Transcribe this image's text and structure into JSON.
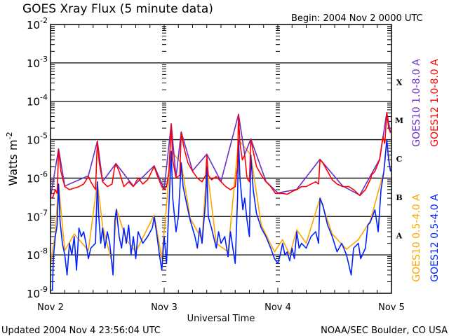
{
  "chart_data": {
    "type": "line",
    "title": "GOES Xray Flux (5 minute data)",
    "begin_label": "Begin:  2004 Nov 2 0000 UTC",
    "xlabel": "Universal Time",
    "ylabel": "Watts m",
    "ylabel_sup": "-2",
    "yscale": "log",
    "ylim": [
      1e-09,
      0.01
    ],
    "xlim_hours": [
      0,
      72
    ],
    "x_tick_labels": [
      {
        "hour": 0,
        "label": "Nov 2"
      },
      {
        "hour": 24,
        "label": "Nov 3"
      },
      {
        "hour": 48,
        "label": "Nov 4"
      },
      {
        "hour": 72,
        "label": "Nov 5"
      }
    ],
    "y_tick_base": "10",
    "y_tick_exponents": [
      "-2",
      "-3",
      "-4",
      "-5",
      "-6",
      "-7",
      "-8",
      "-9"
    ],
    "flare_classes": [
      {
        "label": "X",
        "decade": -4
      },
      {
        "label": "M",
        "decade": -5
      },
      {
        "label": "C",
        "decade": -6
      },
      {
        "label": "B",
        "decade": -7
      },
      {
        "label": "A",
        "decade": -8
      }
    ],
    "grid": "horizontal lines at each decade from 1e-8 to 1e-3; vertical day lines",
    "legend_placement": "right, vertical",
    "series": [
      {
        "name": "GOES10 1.0-8.0 A",
        "color": "#6a2fc8",
        "legend_column": "long",
        "points": [
          [
            0,
            3.1e-07
          ],
          [
            1.7,
            5.8e-06
          ],
          [
            3,
            6.2e-07
          ],
          [
            8,
            1.15e-06
          ],
          [
            9.9,
            9.2e-06
          ],
          [
            11,
            8.2e-07
          ],
          [
            13.8,
            2.4e-06
          ],
          [
            17.5,
            6.2e-07
          ],
          [
            21.9,
            2.1e-06
          ],
          [
            24,
            5.2e-07
          ],
          [
            25.5,
            2.6e-05
          ],
          [
            26.5,
            1.05e-06
          ],
          [
            27.6,
            1.6e-05
          ],
          [
            30,
            1.55e-06
          ],
          [
            33,
            4.2e-06
          ],
          [
            36,
            8.2e-07
          ],
          [
            39.7,
            4.6e-05
          ],
          [
            41,
            4.1e-06
          ],
          [
            42.3,
            1.05e-05
          ],
          [
            45.5,
            8.2e-07
          ],
          [
            48,
            4.1e-07
          ],
          [
            52,
            5.1e-07
          ],
          [
            56.9,
            3.1e-06
          ],
          [
            61.7,
            6.2e-07
          ],
          [
            65.3,
            3.6e-07
          ],
          [
            69.5,
            3.1e-06
          ],
          [
            71,
            5.1e-05
          ],
          [
            71.8,
            1.55e-05
          ]
        ]
      },
      {
        "name": "GOES12 1.0-8.0 A",
        "color": "#ff0000",
        "legend_column": "long",
        "points": [
          [
            0,
            3e-07
          ],
          [
            0.5,
            3.2e-07
          ],
          [
            1,
            5e-07
          ],
          [
            1.4,
            4e-07
          ],
          [
            1.7,
            5.5e-06
          ],
          [
            2.2,
            1.5e-06
          ],
          [
            3,
            6e-07
          ],
          [
            4,
            5e-07
          ],
          [
            5,
            5.5e-07
          ],
          [
            6,
            6e-07
          ],
          [
            7,
            7e-07
          ],
          [
            8,
            1.1e-06
          ],
          [
            8.5,
            8e-07
          ],
          [
            9.5,
            5e-07
          ],
          [
            9.9,
            9e-06
          ],
          [
            10.3,
            2.5e-06
          ],
          [
            11,
            8e-07
          ],
          [
            12,
            6e-07
          ],
          [
            13,
            7e-07
          ],
          [
            13.5,
            1.8e-06
          ],
          [
            13.8,
            2.3e-06
          ],
          [
            14.5,
            1.5e-06
          ],
          [
            15.5,
            6e-07
          ],
          [
            16.5,
            8e-07
          ],
          [
            17.5,
            6e-07
          ],
          [
            18.5,
            1e-06
          ],
          [
            19.5,
            7e-07
          ],
          [
            20.5,
            9e-07
          ],
          [
            21.5,
            1.6e-06
          ],
          [
            21.9,
            2e-06
          ],
          [
            22.5,
            1.2e-06
          ],
          [
            23.5,
            6e-07
          ],
          [
            24,
            5e-07
          ],
          [
            24.5,
            6e-07
          ],
          [
            25,
            1.5e-06
          ],
          [
            25.5,
            2.5e-05
          ],
          [
            25.8,
            3e-06
          ],
          [
            26.5,
            1e-06
          ],
          [
            27.3,
            1.2e-06
          ],
          [
            27.6,
            1.5e-05
          ],
          [
            28.2,
            6e-06
          ],
          [
            29,
            2.5e-06
          ],
          [
            30,
            1.5e-06
          ],
          [
            31,
            1e-06
          ],
          [
            32,
            8e-07
          ],
          [
            32.8,
            1.2e-06
          ],
          [
            33,
            4e-06
          ],
          [
            33.3,
            1.2e-06
          ],
          [
            34,
            9e-07
          ],
          [
            35,
            1.1e-06
          ],
          [
            36,
            8e-07
          ],
          [
            37,
            6e-07
          ],
          [
            38,
            5e-07
          ],
          [
            39,
            6e-07
          ],
          [
            39.5,
            2e-06
          ],
          [
            39.7,
            4.5e-05
          ],
          [
            40,
            8e-06
          ],
          [
            40.5,
            3e-06
          ],
          [
            41,
            4e-06
          ],
          [
            41.5,
            1e-06
          ],
          [
            42,
            8e-07
          ],
          [
            42.3,
            1e-05
          ],
          [
            42.8,
            5e-06
          ],
          [
            43.5,
            2e-06
          ],
          [
            44.5,
            1.2e-06
          ],
          [
            45.5,
            8e-07
          ],
          [
            46.5,
            6e-07
          ],
          [
            47.5,
            4e-07
          ],
          [
            48,
            4e-07
          ],
          [
            49,
            4e-07
          ],
          [
            50,
            3.8e-07
          ],
          [
            51,
            4.5e-07
          ],
          [
            52,
            5e-07
          ],
          [
            53,
            6e-07
          ],
          [
            54,
            6e-07
          ],
          [
            55,
            7e-07
          ],
          [
            56,
            8e-07
          ],
          [
            56.6,
            7e-07
          ],
          [
            56.9,
            3e-06
          ],
          [
            57.5,
            2.5e-06
          ],
          [
            58.5,
            1.5e-06
          ],
          [
            59.5,
            9e-07
          ],
          [
            60.5,
            7e-07
          ],
          [
            61.7,
            6e-07
          ],
          [
            63,
            6e-07
          ],
          [
            64,
            5e-07
          ],
          [
            65.3,
            3.5e-07
          ],
          [
            66.5,
            5e-07
          ],
          [
            67.5,
            9e-07
          ],
          [
            67.8,
            1.2e-06
          ],
          [
            68.5,
            1.5e-06
          ],
          [
            69.5,
            3e-06
          ],
          [
            70.2,
            1.2e-05
          ],
          [
            70.6,
            8e-06
          ],
          [
            71,
            5e-05
          ],
          [
            71.4,
            2e-05
          ],
          [
            71.8,
            1.5e-05
          ]
        ]
      },
      {
        "name": "GOES10 0.5-4.0 A",
        "color": "#ffa500",
        "legend_column": "short",
        "points": [
          [
            0,
            6e-09
          ],
          [
            1,
            3.5e-08
          ],
          [
            1.7,
            7e-07
          ],
          [
            3,
            1.3e-08
          ],
          [
            5,
            3.5e-08
          ],
          [
            8,
            1.3e-08
          ],
          [
            9.9,
            8e-07
          ],
          [
            11,
            5.5e-08
          ],
          [
            13.2,
            5e-09
          ],
          [
            13.9,
            1.6e-07
          ],
          [
            16,
            2.5e-08
          ],
          [
            18,
            1.2e-08
          ],
          [
            21.9,
            1.1e-07
          ],
          [
            23.5,
            8e-09
          ],
          [
            25.5,
            5e-06
          ],
          [
            27.6,
            2.5e-06
          ],
          [
            29.5,
            9e-08
          ],
          [
            32,
            2.5e-08
          ],
          [
            33,
            2e-06
          ],
          [
            35,
            2e-08
          ],
          [
            37.5,
            1.2e-08
          ],
          [
            39.7,
            1e-05
          ],
          [
            42.3,
            4e-06
          ],
          [
            44.5,
            6e-08
          ],
          [
            47.3,
            1.2e-08
          ],
          [
            49,
            2.5e-08
          ],
          [
            50.5,
            1e-08
          ],
          [
            52,
            4.5e-08
          ],
          [
            54,
            2e-08
          ],
          [
            56.9,
            3e-07
          ],
          [
            59.5,
            3.5e-08
          ],
          [
            62.5,
            1.4e-08
          ],
          [
            65,
            2.5e-08
          ],
          [
            67.5,
            7.5e-08
          ],
          [
            70.4,
            1.5e-06
          ],
          [
            71,
            9e-06
          ],
          [
            71.8,
            1.5e-06
          ]
        ]
      },
      {
        "name": "GOES12 0.5-4.0 A",
        "color": "#0022ff",
        "legend_column": "short",
        "points": [
          [
            0,
            1.2e-09
          ],
          [
            0.4,
            1.2e-09
          ],
          [
            0.6,
            8e-09
          ],
          [
            1,
            3e-08
          ],
          [
            1.4,
            6e-08
          ],
          [
            1.7,
            7e-07
          ],
          [
            2,
            8e-08
          ],
          [
            2.5,
            2e-08
          ],
          [
            3,
            1e-08
          ],
          [
            3.5,
            3e-09
          ],
          [
            4,
            2e-08
          ],
          [
            4.5,
            1e-08
          ],
          [
            5,
            3e-08
          ],
          [
            5.5,
            4e-09
          ],
          [
            6,
            5e-08
          ],
          [
            6.5,
            3e-08
          ],
          [
            7,
            4e-08
          ],
          [
            7.5,
            2e-08
          ],
          [
            8,
            8e-09
          ],
          [
            8.5,
            1.5e-08
          ],
          [
            9.5,
            2e-08
          ],
          [
            9.9,
            8e-07
          ],
          [
            10.2,
            1e-07
          ],
          [
            10.6,
            2e-08
          ],
          [
            11,
            5e-08
          ],
          [
            11.5,
            1.5e-08
          ],
          [
            12,
            4e-08
          ],
          [
            12.5,
            2e-08
          ],
          [
            13.2,
            3e-09
          ],
          [
            13.6,
            8e-08
          ],
          [
            13.9,
            1.5e-07
          ],
          [
            14.5,
            3e-08
          ],
          [
            15,
            1.5e-08
          ],
          [
            15.5,
            5e-08
          ],
          [
            16,
            2e-08
          ],
          [
            16.5,
            6e-08
          ],
          [
            17,
            1e-08
          ],
          [
            17.5,
            3e-08
          ],
          [
            18,
            8e-09
          ],
          [
            18.5,
            4e-08
          ],
          [
            19.5,
            2e-08
          ],
          [
            20.5,
            3e-08
          ],
          [
            21.5,
            5e-08
          ],
          [
            21.9,
            1e-07
          ],
          [
            22.5,
            3e-08
          ],
          [
            23,
            1e-08
          ],
          [
            23.5,
            4e-09
          ],
          [
            24,
            3e-08
          ],
          [
            24.5,
            6e-09
          ],
          [
            25,
            2e-07
          ],
          [
            25.5,
            5e-06
          ],
          [
            25.8,
            3e-07
          ],
          [
            26.5,
            4e-08
          ],
          [
            27,
            1e-07
          ],
          [
            27.6,
            2.5e-06
          ],
          [
            28,
            6e-07
          ],
          [
            28.8,
            2e-07
          ],
          [
            29.5,
            8e-08
          ],
          [
            30.5,
            3e-08
          ],
          [
            31,
            1.5e-08
          ],
          [
            31.5,
            5e-08
          ],
          [
            32,
            2e-08
          ],
          [
            32.8,
            3e-07
          ],
          [
            33,
            2e-06
          ],
          [
            33.3,
            1e-07
          ],
          [
            34,
            5e-08
          ],
          [
            35,
            1.5e-08
          ],
          [
            35.5,
            4e-08
          ],
          [
            36,
            2e-08
          ],
          [
            36.8,
            3e-08
          ],
          [
            37.5,
            9e-09
          ],
          [
            38,
            4e-08
          ],
          [
            38.5,
            1.5e-08
          ],
          [
            39,
            6e-09
          ],
          [
            39.5,
            3e-07
          ],
          [
            39.7,
            1e-05
          ],
          [
            40,
            1e-06
          ],
          [
            40.6,
            1.5e-07
          ],
          [
            41,
            3e-07
          ],
          [
            41.5,
            8e-08
          ],
          [
            42,
            3e-08
          ],
          [
            42.3,
            4e-06
          ],
          [
            42.8,
            5e-07
          ],
          [
            43.5,
            1.2e-07
          ],
          [
            44.5,
            5e-08
          ],
          [
            45.5,
            3e-08
          ],
          [
            46.5,
            1.5e-08
          ],
          [
            47.3,
            8e-09
          ],
          [
            48,
            6e-09
          ],
          [
            48.5,
            1e-08
          ],
          [
            49,
            2e-08
          ],
          [
            49.5,
            1e-08
          ],
          [
            50,
            1.2e-08
          ],
          [
            50.5,
            7e-09
          ],
          [
            51,
            1.5e-08
          ],
          [
            51.5,
            8e-09
          ],
          [
            52,
            4e-08
          ],
          [
            52.5,
            1.5e-08
          ],
          [
            53,
            2e-08
          ],
          [
            54,
            1.5e-08
          ],
          [
            55,
            3e-08
          ],
          [
            56,
            4e-08
          ],
          [
            56.6,
            2e-08
          ],
          [
            56.9,
            3e-07
          ],
          [
            57.5,
            2e-07
          ],
          [
            58.5,
            6e-08
          ],
          [
            59.5,
            3e-08
          ],
          [
            60.5,
            1.2e-08
          ],
          [
            61.5,
            2e-08
          ],
          [
            62.5,
            1e-08
          ],
          [
            63.5,
            3e-09
          ],
          [
            64,
            1.5e-08
          ],
          [
            65,
            2e-08
          ],
          [
            65.5,
            8e-09
          ],
          [
            66.5,
            1.5e-08
          ],
          [
            67,
            6e-08
          ],
          [
            67.5,
            7e-08
          ],
          [
            68.5,
            1.5e-07
          ],
          [
            69.2,
            4e-08
          ],
          [
            69.8,
            5e-07
          ],
          [
            70.4,
            1.5e-06
          ],
          [
            71,
            1e-05
          ],
          [
            71.4,
            3e-06
          ],
          [
            71.8,
            1.5e-06
          ]
        ]
      }
    ]
  },
  "footer": {
    "updated": "Updated 2004 Nov  4 23:56:04 UTC",
    "credit": "NOAA/SEC Boulder, CO USA"
  }
}
